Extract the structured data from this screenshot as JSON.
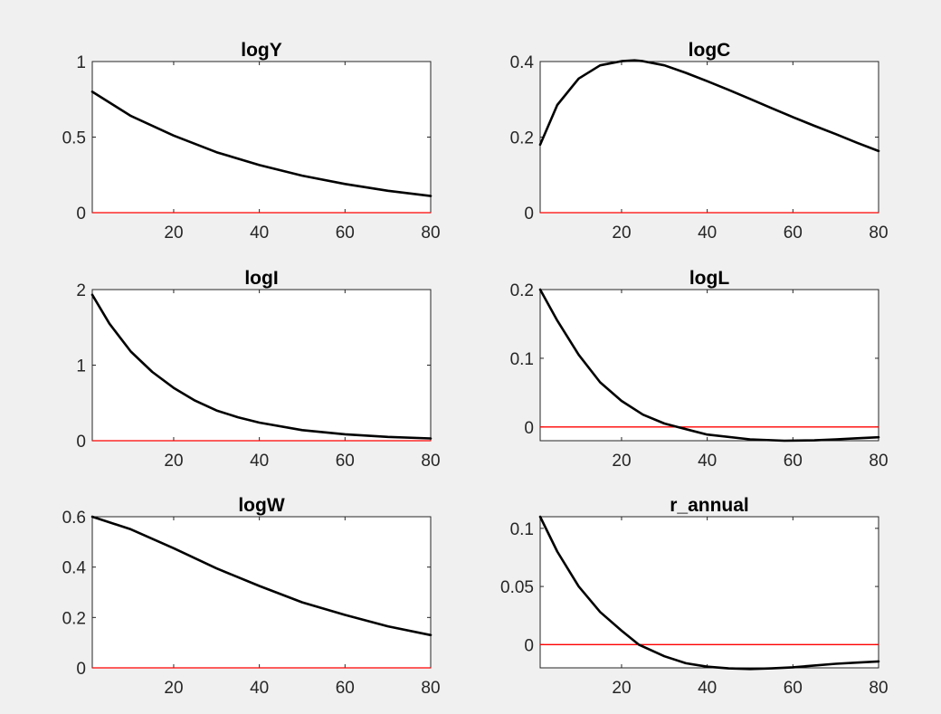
{
  "chart_data": [
    {
      "type": "line",
      "title": "logY",
      "xlim": [
        1,
        80
      ],
      "ylim": [
        0,
        1
      ],
      "xticks": [
        20,
        40,
        60,
        80
      ],
      "yticks": [
        0,
        0.5,
        1
      ],
      "series": [
        {
          "color": "#000000",
          "x": [
            1,
            10,
            20,
            30,
            40,
            50,
            60,
            70,
            80
          ],
          "y": [
            0.8,
            0.64,
            0.51,
            0.4,
            0.315,
            0.245,
            0.19,
            0.145,
            0.11
          ]
        }
      ],
      "reference": {
        "y": 0,
        "color": "#ff0000"
      }
    },
    {
      "type": "line",
      "title": "logC",
      "xlim": [
        1,
        80
      ],
      "ylim": [
        0,
        0.4
      ],
      "xticks": [
        20,
        40,
        60,
        80
      ],
      "yticks": [
        0,
        0.2,
        0.4
      ],
      "series": [
        {
          "color": "#000000",
          "x": [
            1,
            5,
            10,
            15,
            20,
            23,
            25,
            30,
            35,
            40,
            45,
            50,
            55,
            60,
            65,
            70,
            75,
            80
          ],
          "y": [
            0.18,
            0.285,
            0.355,
            0.39,
            0.401,
            0.403,
            0.401,
            0.39,
            0.37,
            0.348,
            0.325,
            0.301,
            0.277,
            0.253,
            0.23,
            0.208,
            0.185,
            0.163
          ]
        }
      ],
      "reference": {
        "y": 0,
        "color": "#ff0000"
      }
    },
    {
      "type": "line",
      "title": "logI",
      "xlim": [
        1,
        80
      ],
      "ylim": [
        0,
        2
      ],
      "xticks": [
        20,
        40,
        60,
        80
      ],
      "yticks": [
        0,
        1,
        2
      ],
      "series": [
        {
          "color": "#000000",
          "x": [
            1,
            5,
            10,
            15,
            20,
            25,
            30,
            35,
            40,
            50,
            60,
            70,
            80
          ],
          "y": [
            1.93,
            1.55,
            1.18,
            0.91,
            0.7,
            0.53,
            0.4,
            0.31,
            0.24,
            0.14,
            0.085,
            0.05,
            0.03
          ]
        }
      ],
      "reference": {
        "y": 0,
        "color": "#ff0000"
      }
    },
    {
      "type": "line",
      "title": "logL",
      "xlim": [
        1,
        80
      ],
      "ylim": [
        -0.02,
        0.2
      ],
      "xticks": [
        20,
        40,
        60,
        80
      ],
      "yticks": [
        0,
        0.1,
        0.2
      ],
      "series": [
        {
          "color": "#000000",
          "x": [
            1,
            5,
            10,
            15,
            20,
            25,
            30,
            33,
            40,
            50,
            58,
            65,
            70,
            75,
            80
          ],
          "y": [
            0.2,
            0.155,
            0.105,
            0.065,
            0.038,
            0.018,
            0.005,
            0.0,
            -0.011,
            -0.018,
            -0.02,
            -0.0195,
            -0.018,
            -0.0165,
            -0.015
          ]
        }
      ],
      "reference": {
        "y": 0,
        "color": "#ff0000"
      }
    },
    {
      "type": "line",
      "title": "logW",
      "xlim": [
        1,
        80
      ],
      "ylim": [
        0,
        0.6
      ],
      "xticks": [
        20,
        40,
        60,
        80
      ],
      "yticks": [
        0,
        0.2,
        0.4,
        0.6
      ],
      "series": [
        {
          "color": "#000000",
          "x": [
            1,
            10,
            20,
            30,
            40,
            50,
            60,
            70,
            80
          ],
          "y": [
            0.6,
            0.55,
            0.475,
            0.395,
            0.325,
            0.26,
            0.21,
            0.165,
            0.13
          ]
        }
      ],
      "reference": {
        "y": 0,
        "color": "#ff0000"
      }
    },
    {
      "type": "line",
      "title": "r_annual",
      "xlim": [
        1,
        80
      ],
      "ylim": [
        -0.02,
        0.11
      ],
      "xticks": [
        20,
        40,
        60,
        80
      ],
      "yticks": [
        0,
        0.05,
        0.1
      ],
      "series": [
        {
          "color": "#000000",
          "x": [
            1,
            5,
            10,
            15,
            20,
            24,
            30,
            35,
            40,
            45,
            50,
            55,
            60,
            65,
            70,
            75,
            80
          ],
          "y": [
            0.11,
            0.08,
            0.05,
            0.028,
            0.012,
            0.0,
            -0.01,
            -0.016,
            -0.019,
            -0.0205,
            -0.021,
            -0.0205,
            -0.0195,
            -0.018,
            -0.0165,
            -0.0155,
            -0.0145
          ]
        }
      ],
      "reference": {
        "y": 0,
        "color": "#ff0000"
      }
    }
  ]
}
